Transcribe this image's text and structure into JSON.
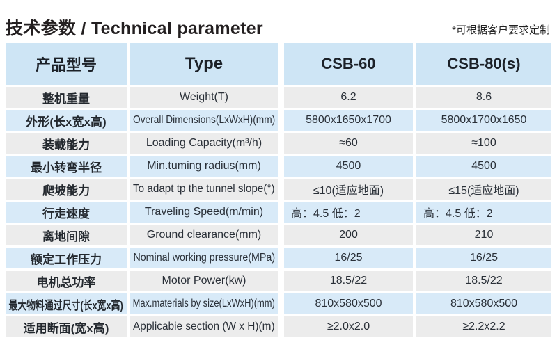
{
  "page": {
    "title": "技术参数 / Technical parameter",
    "note": "*可根据客户要求定制"
  },
  "colors": {
    "header_bg": "#cee5f5",
    "row_blue_bg": "#d8eaf8",
    "row_gray_bg": "#ececec",
    "gap": "#ffffff",
    "text_dark": "#231f20"
  },
  "table": {
    "header": {
      "col1": "产品型号",
      "col2": "Type",
      "col3": "CSB-60",
      "col4": "CSB-80(s)"
    },
    "rows": [
      {
        "cn": "整机重量",
        "en": "Weight(T)",
        "csb60": "6.2",
        "csb80": "8.6"
      },
      {
        "cn": "外形(长x宽x高)",
        "en": "Overall Dimensions(LxWxH)(mm)",
        "csb60": "5800x1650x1700",
        "csb80": "5800x1700x1650"
      },
      {
        "cn": "装载能力",
        "en": "Loading Capacity(m³/h)",
        "csb60": "≈60",
        "csb80": "≈100"
      },
      {
        "cn": "最小转弯半径",
        "en": "Min.tuming radius(mm)",
        "csb60": "4500",
        "csb80": "4500"
      },
      {
        "cn": "爬坡能力",
        "en": "To adapt tp the tunnel slope(°)",
        "csb60": "≤10(适应地面)",
        "csb80": "≤15(适应地面)"
      },
      {
        "cn": "行走速度",
        "en": "Traveling Speed(m/min)",
        "csb60": "高：4.5 低：2",
        "csb80": "高：4.5 低：2"
      },
      {
        "cn": "离地间隙",
        "en": "Ground clearance(mm)",
        "csb60": "200",
        "csb80": "210"
      },
      {
        "cn": "额定工作压力",
        "en": "Nominal working pressure(MPa)",
        "csb60": "16/25",
        "csb80": "16/25"
      },
      {
        "cn": "电机总功率",
        "en": "Motor Power(kw)",
        "csb60": "18.5/22",
        "csb80": "18.5/22"
      },
      {
        "cn": "最大物料通过尺寸(长x宽x高)",
        "en": "Max.materials by size(LxWxH)(mm)",
        "csb60": "810x580x500",
        "csb80": "810x580x500"
      },
      {
        "cn": "适用断面(宽x高)",
        "en": "Applicabie section (W x H)(m)",
        "csb60": "≥2.0x2.0",
        "csb80": "≥2.2x2.2"
      }
    ]
  }
}
